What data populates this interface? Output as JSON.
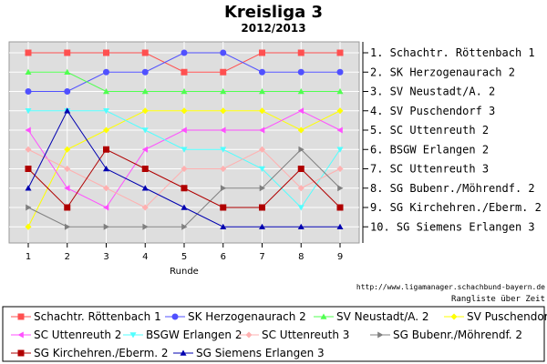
{
  "chart_data": {
    "type": "line",
    "title": "Kreisliga 3",
    "subtitle": "2012/2013",
    "xlabel": "Runde",
    "x": [
      1,
      2,
      3,
      4,
      5,
      6,
      7,
      8,
      9
    ],
    "ylim": [
      10,
      1
    ],
    "y_inverted": true,
    "grid": true,
    "rank_labels": [
      "1. Schachtr. Röttenbach 1",
      "2. SK Herzogenaurach 2",
      "3. SV Neustadt/A. 2",
      "4. SV Puschendorf 3",
      "5. SC Uttenreuth 2",
      "6. BSGW Erlangen 2",
      "7. SC Uttenreuth 3",
      "8. SG Bubenr./Möhrendf. 2",
      "9. SG Kirchehren./Eberm. 2",
      "10. SG Siemens Erlangen 3"
    ],
    "footer_url": "http://www.ligamanager.schachbund-bayern.de",
    "footer_caption": "Rangliste über Zeit",
    "legend_position": "bottom",
    "series": [
      {
        "name": "Schachtr. Röttenbach 1",
        "color": "#ff5050",
        "marker": "square",
        "values": [
          1,
          1,
          1,
          1,
          2,
          2,
          1,
          1,
          1
        ]
      },
      {
        "name": "SK Herzogenaurach 2",
        "color": "#5050ff",
        "marker": "circle",
        "values": [
          3,
          3,
          2,
          2,
          1,
          1,
          2,
          2,
          2
        ]
      },
      {
        "name": "SV Neustadt/A. 2",
        "color": "#50ff50",
        "marker": "triangle-up",
        "values": [
          2,
          2,
          3,
          3,
          3,
          3,
          3,
          3,
          3
        ]
      },
      {
        "name": "SV Puschendorf 3",
        "color": "#ffff00",
        "marker": "diamond",
        "values": [
          10,
          6,
          5,
          4,
          4,
          4,
          4,
          5,
          4
        ]
      },
      {
        "name": "SC Uttenreuth 2",
        "color": "#ff50ff",
        "marker": "triangle-left",
        "values": [
          5,
          8,
          9,
          6,
          5,
          5,
          5,
          4,
          5
        ]
      },
      {
        "name": "BSGW Erlangen 2",
        "color": "#50ffff",
        "marker": "triangle-down",
        "values": [
          4,
          4,
          4,
          5,
          6,
          6,
          7,
          9,
          6
        ]
      },
      {
        "name": "SC Uttenreuth 3",
        "color": "#ffb0b0",
        "marker": "diamond",
        "values": [
          6,
          7,
          8,
          9,
          7,
          7,
          6,
          8,
          7
        ]
      },
      {
        "name": "SG Bubenr./Möhrendf. 2",
        "color": "#808080",
        "marker": "triangle-right",
        "values": [
          9,
          10,
          10,
          10,
          10,
          8,
          8,
          6,
          8
        ]
      },
      {
        "name": "SG Kirchehren./Eberm. 2",
        "color": "#b00000",
        "marker": "square",
        "values": [
          7,
          9,
          6,
          7,
          8,
          9,
          9,
          7,
          9
        ]
      },
      {
        "name": "SG Siemens Erlangen 3",
        "color": "#0000b0",
        "marker": "triangle-up",
        "values": [
          8,
          4,
          7,
          8,
          9,
          10,
          10,
          10,
          10
        ]
      }
    ]
  }
}
